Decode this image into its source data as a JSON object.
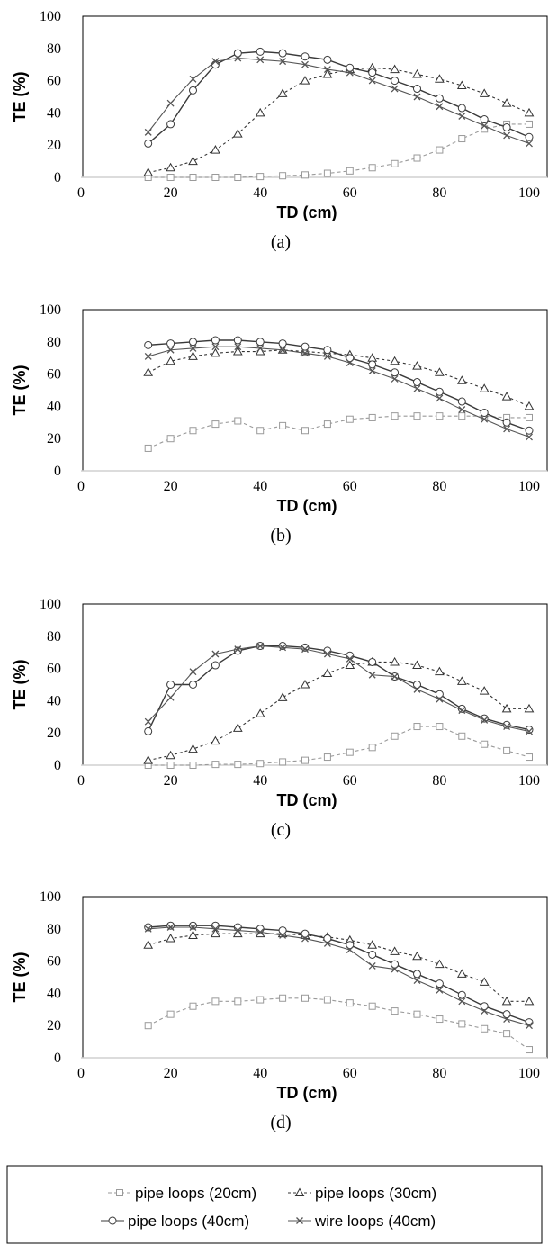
{
  "chart_data": [
    {
      "type": "line",
      "caption": "(a)",
      "xlabel": "TD (cm)",
      "ylabel": "TE (%)",
      "xlim": [
        0,
        100
      ],
      "ylim": [
        0,
        100
      ],
      "xticks": [
        0,
        20,
        40,
        60,
        80,
        100
      ],
      "yticks": [
        0,
        20,
        40,
        60,
        80,
        100
      ],
      "grid": false,
      "x": [
        15,
        20,
        25,
        30,
        35,
        40,
        45,
        50,
        55,
        60,
        65,
        70,
        75,
        80,
        85,
        90,
        95,
        100
      ],
      "series": [
        {
          "name": "pipe loops (20cm)",
          "values": [
            0,
            0,
            0,
            0,
            0,
            0.5,
            1,
            1.5,
            2.5,
            4,
            6,
            8.5,
            12,
            17,
            24,
            30,
            33,
            33
          ]
        },
        {
          "name": "pipe loops (30cm)",
          "values": [
            3,
            6,
            10,
            17,
            27,
            40,
            52,
            60,
            64,
            67,
            68,
            67,
            64,
            61,
            57,
            52,
            46,
            40
          ]
        },
        {
          "name": "pipe loops (40cm)",
          "values": [
            21,
            33,
            54,
            70,
            77,
            78,
            77,
            75,
            73,
            68,
            65,
            60,
            55,
            49,
            43,
            36,
            31,
            25
          ]
        },
        {
          "name": "wire loops (40cm)",
          "values": [
            28,
            46,
            61,
            72,
            74,
            73,
            72,
            70,
            67,
            65,
            60,
            55,
            50,
            44,
            38,
            32,
            26,
            21
          ]
        }
      ]
    },
    {
      "type": "line",
      "caption": "(b)",
      "xlabel": "TD (cm)",
      "ylabel": "TE (%)",
      "xlim": [
        0,
        100
      ],
      "ylim": [
        0,
        100
      ],
      "xticks": [
        0,
        20,
        40,
        60,
        80,
        100
      ],
      "yticks": [
        0,
        20,
        40,
        60,
        80,
        100
      ],
      "grid": false,
      "x": [
        15,
        20,
        25,
        30,
        35,
        40,
        45,
        50,
        55,
        60,
        65,
        70,
        75,
        80,
        85,
        90,
        95,
        100
      ],
      "series": [
        {
          "name": "pipe loops (20cm)",
          "values": [
            14,
            20,
            25,
            29,
            31,
            25,
            28,
            25,
            29,
            32,
            33,
            34,
            34,
            34,
            34,
            34,
            33,
            33
          ]
        },
        {
          "name": "pipe loops (30cm)",
          "values": [
            61,
            68,
            71,
            73,
            74,
            74,
            75,
            74,
            73,
            72,
            70,
            68,
            65,
            61,
            56,
            51,
            46,
            40
          ]
        },
        {
          "name": "pipe loops (40cm)",
          "values": [
            78,
            79,
            80,
            81,
            81,
            80,
            79,
            77,
            75,
            70,
            66,
            61,
            55,
            49,
            43,
            36,
            30,
            25
          ]
        },
        {
          "name": "wire loops (40cm)",
          "values": [
            71,
            75,
            76,
            77,
            77,
            76,
            75,
            73,
            71,
            67,
            62,
            57,
            51,
            45,
            38,
            32,
            26,
            21
          ]
        }
      ]
    },
    {
      "type": "line",
      "caption": "(c)",
      "xlabel": "TD (cm)",
      "ylabel": "TE (%)",
      "xlim": [
        0,
        100
      ],
      "ylim": [
        0,
        100
      ],
      "xticks": [
        0,
        20,
        40,
        60,
        80,
        100
      ],
      "yticks": [
        0,
        20,
        40,
        60,
        80,
        100
      ],
      "grid": false,
      "x": [
        15,
        20,
        25,
        30,
        35,
        40,
        45,
        50,
        55,
        60,
        65,
        70,
        75,
        80,
        85,
        90,
        95,
        100
      ],
      "series": [
        {
          "name": "pipe loops (20cm)",
          "values": [
            0,
            0,
            0,
            0.5,
            0.5,
            1,
            2,
            3,
            5,
            8,
            11,
            18,
            24,
            24,
            18,
            13,
            9,
            5
          ]
        },
        {
          "name": "pipe loops (30cm)",
          "values": [
            3,
            6,
            10,
            15,
            23,
            32,
            42,
            50,
            57,
            62,
            64,
            64,
            62,
            58,
            52,
            46,
            35,
            35
          ]
        },
        {
          "name": "pipe loops (40cm)",
          "values": [
            21,
            50,
            50,
            62,
            71,
            74,
            74,
            73,
            71,
            68,
            64,
            55,
            50,
            44,
            35,
            29,
            25,
            22
          ]
        },
        {
          "name": "wire loops (40cm)",
          "values": [
            27,
            42,
            58,
            69,
            72,
            74,
            73,
            72,
            69,
            66,
            56,
            55,
            47,
            41,
            34,
            28,
            24,
            21
          ]
        }
      ]
    },
    {
      "type": "line",
      "caption": "(d)",
      "xlabel": "TD (cm)",
      "ylabel": "TE (%)",
      "xlim": [
        0,
        100
      ],
      "ylim": [
        0,
        100
      ],
      "xticks": [
        0,
        20,
        40,
        60,
        80,
        100
      ],
      "yticks": [
        0,
        20,
        40,
        60,
        80,
        100
      ],
      "grid": false,
      "x": [
        15,
        20,
        25,
        30,
        35,
        40,
        45,
        50,
        55,
        60,
        65,
        70,
        75,
        80,
        85,
        90,
        95,
        100
      ],
      "series": [
        {
          "name": "pipe loops (20cm)",
          "values": [
            20,
            27,
            32,
            35,
            35,
            36,
            37,
            37,
            36,
            34,
            32,
            29,
            27,
            24,
            21,
            18,
            15,
            5
          ]
        },
        {
          "name": "pipe loops (30cm)",
          "values": [
            70,
            74,
            76,
            77,
            77,
            77,
            77,
            76,
            75,
            73,
            70,
            66,
            63,
            58,
            52,
            47,
            35,
            35
          ]
        },
        {
          "name": "pipe loops (40cm)",
          "values": [
            81,
            82,
            82,
            82,
            81,
            80,
            79,
            77,
            74,
            70,
            64,
            58,
            52,
            46,
            39,
            32,
            27,
            22
          ]
        },
        {
          "name": "wire loops (40cm)",
          "values": [
            80,
            81,
            81,
            80,
            79,
            78,
            76,
            74,
            71,
            67,
            57,
            55,
            48,
            42,
            35,
            29,
            24,
            20
          ]
        }
      ]
    }
  ],
  "legend": {
    "items": [
      {
        "label": "pipe loops (20cm)",
        "marker": "square",
        "dash": "4,3",
        "color": "#9a9a9a"
      },
      {
        "label": "pipe loops (30cm)",
        "marker": "triangle",
        "dash": "3,3",
        "color": "#333333"
      },
      {
        "label": "pipe loops (40cm)",
        "marker": "circle",
        "dash": "",
        "color": "#3a3a3a"
      },
      {
        "label": "wire loops (40cm)",
        "marker": "x",
        "dash": "",
        "color": "#555555"
      }
    ]
  },
  "styles": {
    "axis_color": "#d0d0d0",
    "frame_color": "#000000",
    "marker_fill": "#ffffff"
  }
}
